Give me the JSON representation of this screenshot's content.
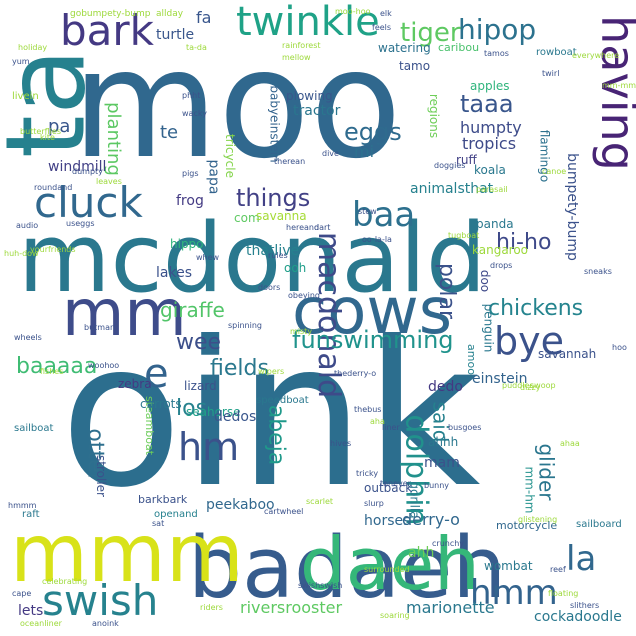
{
  "words": [
    {
      "text": "oink",
      "color": "#2c6e8e",
      "size": 200,
      "rot": 0
    },
    {
      "text": "moo",
      "color": "#30688e",
      "size": 150,
      "rot": 0
    },
    {
      "text": "ta",
      "color": "#26818e",
      "size": 110,
      "rot": -90
    },
    {
      "text": "mcdonald",
      "color": "#2a788e",
      "size": 95,
      "rot": 0
    },
    {
      "text": "cows",
      "color": "#31688e",
      "size": 64,
      "rot": 0
    },
    {
      "text": "mm",
      "color": "#3e4c8a",
      "size": 64,
      "rot": 0
    },
    {
      "text": "badaeh",
      "color": "#365c8d",
      "size": 85,
      "rot": 0
    },
    {
      "text": "mmm",
      "color": "#d8e219",
      "size": 80,
      "rot": 0
    },
    {
      "text": "daeh",
      "color": "#35b779",
      "size": 72,
      "rot": 0
    },
    {
      "text": "bark",
      "color": "#443983",
      "size": 42,
      "rot": 0
    },
    {
      "text": "twinkle",
      "color": "#1fa287",
      "size": 40,
      "rot": 0
    },
    {
      "text": "cluck",
      "color": "#31688e",
      "size": 42,
      "rot": 0
    },
    {
      "text": "swish",
      "color": "#26828e",
      "size": 42,
      "rot": 0
    },
    {
      "text": "having",
      "color": "#482475",
      "size": 46,
      "rot": 90
    },
    {
      "text": "bye",
      "color": "#3b528b",
      "size": 38,
      "rot": 0
    },
    {
      "text": "hm",
      "color": "#3b528b",
      "size": 38,
      "rot": 0
    },
    {
      "text": "e",
      "color": "#33638d",
      "size": 40,
      "rot": 0
    },
    {
      "text": "baa",
      "color": "#2d708e",
      "size": 34,
      "rot": 0
    },
    {
      "text": "la",
      "color": "#31688e",
      "size": 34,
      "rot": 0
    },
    {
      "text": "hmm",
      "color": "#33638d",
      "size": 34,
      "rot": 0
    },
    {
      "text": "macdonald",
      "color": "#3e4a89",
      "size": 30,
      "rot": 90
    },
    {
      "text": "dolphin",
      "color": "#21918c",
      "size": 30,
      "rot": 90
    },
    {
      "text": "hipop",
      "color": "#2c728e",
      "size": 28,
      "rot": 0
    },
    {
      "text": "tiger",
      "color": "#5ec962",
      "size": 26,
      "rot": 0
    },
    {
      "text": "things",
      "color": "#424186",
      "size": 24,
      "rot": 0
    },
    {
      "text": "eggs",
      "color": "#2f6b8e",
      "size": 24,
      "rot": 0
    },
    {
      "text": "taaa",
      "color": "#39568c",
      "size": 24,
      "rot": 0
    },
    {
      "text": "funswimming",
      "color": "#20938c",
      "size": 24,
      "rot": 0
    },
    {
      "text": "chickens",
      "color": "#25848e",
      "size": 22,
      "rot": 0
    },
    {
      "text": "baaaaa",
      "color": "#3fbc73",
      "size": 22,
      "rot": 0
    },
    {
      "text": "giraffe",
      "color": "#52c569",
      "size": 20,
      "rot": 0
    },
    {
      "text": "hi-ho",
      "color": "#3e4989",
      "size": 22,
      "rot": 0
    },
    {
      "text": "polar",
      "color": "#3b528b",
      "size": 22,
      "rot": 90
    },
    {
      "text": "abeja",
      "color": "#1f998a",
      "size": 22,
      "rot": 90
    },
    {
      "text": "los",
      "color": "#26828e",
      "size": 22,
      "rot": 0
    },
    {
      "text": "fields",
      "color": "#2a788e",
      "size": 22,
      "rot": 0
    },
    {
      "text": "otter",
      "color": "#2e6f8e",
      "size": 22,
      "rot": 90
    },
    {
      "text": "wee",
      "color": "#3c4f8a",
      "size": 22,
      "rot": 0
    },
    {
      "text": "glider",
      "color": "#2a768e",
      "size": 20,
      "rot": 90
    },
    {
      "text": "said",
      "color": "#26818e",
      "size": 20,
      "rot": 90
    },
    {
      "text": "planting",
      "color": "#5cc863",
      "size": 18,
      "rot": 90
    },
    {
      "text": "humpty",
      "color": "#3e4c8a",
      "size": 16,
      "rot": 0
    },
    {
      "text": "tropics",
      "color": "#3e4a89",
      "size": 16,
      "rot": 0
    },
    {
      "text": "pa",
      "color": "#39568c",
      "size": 18,
      "rot": 0
    },
    {
      "text": "te",
      "color": "#33638d",
      "size": 18,
      "rot": 0
    },
    {
      "text": "mi",
      "color": "#2d708e",
      "size": 16,
      "rot": 0
    },
    {
      "text": "fa",
      "color": "#39568c",
      "size": 16,
      "rot": 0
    },
    {
      "text": "turtle",
      "color": "#39568c",
      "size": 14,
      "rot": 0
    },
    {
      "text": "tamo",
      "color": "#3b528b",
      "size": 12,
      "rot": 0
    },
    {
      "text": "watering",
      "color": "#2c728e",
      "size": 12,
      "rot": 0
    },
    {
      "text": "caribou",
      "color": "#4ac16d",
      "size": 11,
      "rot": 0
    },
    {
      "text": "plowing",
      "color": "#39568c",
      "size": 12,
      "rot": 0
    },
    {
      "text": "tractor",
      "color": "#2a768e",
      "size": 14,
      "rot": 0
    },
    {
      "text": "apples",
      "color": "#2fb47c",
      "size": 12,
      "rot": 0
    },
    {
      "text": "regions",
      "color": "#6ece58",
      "size": 12,
      "rot": 90
    },
    {
      "text": "flamingo",
      "color": "#2c718e",
      "size": 12,
      "rot": 90
    },
    {
      "text": "bumpety-bump",
      "color": "#3b528b",
      "size": 14,
      "rot": 90
    },
    {
      "text": "babyeinstein",
      "color": "#33638d",
      "size": 12,
      "rot": 90
    },
    {
      "text": "tricycle",
      "color": "#84d44b",
      "size": 12,
      "rot": 90
    },
    {
      "text": "papa",
      "color": "#33638d",
      "size": 14,
      "rot": 90
    },
    {
      "text": "com",
      "color": "#5ec962",
      "size": 12,
      "rot": 0
    },
    {
      "text": "windmill",
      "color": "#424086",
      "size": 14,
      "rot": 0
    },
    {
      "text": "frog",
      "color": "#443b84",
      "size": 14,
      "rot": 0
    },
    {
      "text": "ruff",
      "color": "#424186",
      "size": 12,
      "rot": 0
    },
    {
      "text": "koala",
      "color": "#2a788e",
      "size": 12,
      "rot": 0
    },
    {
      "text": "animalsthat",
      "color": "#26818e",
      "size": 14,
      "rot": 0
    },
    {
      "text": "savanna",
      "color": "#a5db36",
      "size": 12,
      "rot": 0
    },
    {
      "text": "hippo",
      "color": "#2fb47c",
      "size": 12,
      "rot": 0
    },
    {
      "text": "ooh",
      "color": "#1f9e89",
      "size": 12,
      "rot": 0
    },
    {
      "text": "lakes",
      "color": "#3b528b",
      "size": 14,
      "rot": 0
    },
    {
      "text": "thatlive",
      "color": "#26818e",
      "size": 14,
      "rot": 0
    },
    {
      "text": "panda",
      "color": "#2a788e",
      "size": 12,
      "rot": 0
    },
    {
      "text": "kangaroo",
      "color": "#9dd93b",
      "size": 12,
      "rot": 0
    },
    {
      "text": "doo",
      "color": "#3e4989",
      "size": 12,
      "rot": 90
    },
    {
      "text": "zebra",
      "color": "#443983",
      "size": 12,
      "rot": 0
    },
    {
      "text": "steamboat",
      "color": "#6ccd5a",
      "size": 11,
      "rot": 90
    },
    {
      "text": "carrots",
      "color": "#2a788e",
      "size": 12,
      "rot": 0
    },
    {
      "text": "lizard",
      "color": "#3b528b",
      "size": 12,
      "rot": 0
    },
    {
      "text": "seahorse",
      "color": "#1fa088",
      "size": 12,
      "rot": 0
    },
    {
      "text": "dedos",
      "color": "#39568c",
      "size": 14,
      "rot": 0
    },
    {
      "text": "dedo",
      "color": "#443983",
      "size": 14,
      "rot": 0
    },
    {
      "text": "einstein",
      "color": "#33638d",
      "size": 14,
      "rot": 0
    },
    {
      "text": "ahhh",
      "color": "#2a788e",
      "size": 12,
      "rot": 0
    },
    {
      "text": "mam",
      "color": "#3b528b",
      "size": 14,
      "rot": 0
    },
    {
      "text": "mm-hm",
      "color": "#21918c",
      "size": 12,
      "rot": 90
    },
    {
      "text": "penguin",
      "color": "#2a788e",
      "size": 12,
      "rot": 90
    },
    {
      "text": "savannah",
      "color": "#3b528b",
      "size": 12,
      "rot": 0
    },
    {
      "text": "gorilla",
      "color": "#2a788e",
      "size": 12,
      "rot": 90
    },
    {
      "text": "stroller",
      "color": "#3b528b",
      "size": 12,
      "rot": 90
    },
    {
      "text": "amoo",
      "color": "#26818e",
      "size": 11,
      "rot": 90
    },
    {
      "text": "peekaboo",
      "color": "#31688e",
      "size": 14,
      "rot": 0
    },
    {
      "text": "outback",
      "color": "#3b528b",
      "size": 12,
      "rot": 0
    },
    {
      "text": "derry-o",
      "color": "#31688e",
      "size": 16,
      "rot": 0
    },
    {
      "text": "ahh",
      "color": "#6ece58",
      "size": 14,
      "rot": 0
    },
    {
      "text": "horses",
      "color": "#31688e",
      "size": 14,
      "rot": 0
    },
    {
      "text": "wombat",
      "color": "#2a788e",
      "size": 12,
      "rot": 0
    },
    {
      "text": "cockadoodle",
      "color": "#2a788e",
      "size": 14,
      "rot": 0
    },
    {
      "text": "marionette",
      "color": "#2a788e",
      "size": 16,
      "rot": 0
    },
    {
      "text": "riversrooster",
      "color": "#5ec962",
      "size": 16,
      "rot": 0
    },
    {
      "text": "lets",
      "color": "#443983",
      "size": 14,
      "rot": 0
    },
    {
      "text": "motorcycle",
      "color": "#31688e",
      "size": 11,
      "rot": 0
    },
    {
      "text": "barkbark",
      "color": "#3b528b",
      "size": 11,
      "rot": 0
    },
    {
      "text": "openand",
      "color": "#26818e",
      "size": 10,
      "rot": 0
    },
    {
      "text": "speedboat",
      "color": "#2a788e",
      "size": 10,
      "rot": 0
    },
    {
      "text": "sailboard",
      "color": "#2a788e",
      "size": 10,
      "rot": 0
    },
    {
      "text": "sailboat",
      "color": "#2a788e",
      "size": 10,
      "rot": 0
    },
    {
      "text": "raft",
      "color": "#2a788e",
      "size": 10,
      "rot": 0
    },
    {
      "text": "rowboat",
      "color": "#2a788e",
      "size": 10,
      "rot": 0
    },
    {
      "text": "gobumpety-bump",
      "color": "#9dd93b",
      "size": 9,
      "rot": 0
    },
    {
      "text": "allday",
      "color": "#9dd93b",
      "size": 9,
      "rot": 0
    },
    {
      "text": "moo-hoo",
      "color": "#9dd93b",
      "size": 8,
      "rot": 0
    },
    {
      "text": "ta-da",
      "color": "#9dd93b",
      "size": 8,
      "rot": 0
    },
    {
      "text": "rainforest",
      "color": "#9dd93b",
      "size": 8,
      "rot": 0
    },
    {
      "text": "mellow",
      "color": "#9dd93b",
      "size": 8,
      "rot": 0
    },
    {
      "text": "everywhere",
      "color": "#9dd93b",
      "size": 8,
      "rot": 0
    },
    {
      "text": "tamos",
      "color": "#3b528b",
      "size": 8,
      "rot": 0
    },
    {
      "text": "twirl",
      "color": "#3b528b",
      "size": 8,
      "rot": 0
    },
    {
      "text": "yum",
      "color": "#3b528b",
      "size": 8,
      "rot": 0
    },
    {
      "text": "livein",
      "color": "#9dd93b",
      "size": 10,
      "rot": 0
    },
    {
      "text": "butterflies",
      "color": "#9dd93b",
      "size": 8,
      "rot": 0
    },
    {
      "text": "kite",
      "color": "#9dd93b",
      "size": 8,
      "rot": 0
    },
    {
      "text": "phht",
      "color": "#3b528b",
      "size": 8,
      "rot": 0
    },
    {
      "text": "wacky",
      "color": "#3b528b",
      "size": 8,
      "rot": 0
    },
    {
      "text": "dumpty",
      "color": "#3b528b",
      "size": 8,
      "rot": 0
    },
    {
      "text": "roundand",
      "color": "#3b528b",
      "size": 8,
      "rot": 0
    },
    {
      "text": "useggs",
      "color": "#3b528b",
      "size": 8,
      "rot": 0
    },
    {
      "text": "audio",
      "color": "#3b528b",
      "size": 8,
      "rot": 0
    },
    {
      "text": "leaves",
      "color": "#9dd93b",
      "size": 8,
      "rot": 0
    },
    {
      "text": "pigs",
      "color": "#3b528b",
      "size": 8,
      "rot": 0
    },
    {
      "text": "therean",
      "color": "#3b528b",
      "size": 8,
      "rot": 0
    },
    {
      "text": "dive",
      "color": "#3b528b",
      "size": 8,
      "rot": 0
    },
    {
      "text": "doggies",
      "color": "#3b528b",
      "size": 8,
      "rot": 0
    },
    {
      "text": "parasail",
      "color": "#9dd93b",
      "size": 8,
      "rot": 0
    },
    {
      "text": "canoe",
      "color": "#9dd93b",
      "size": 8,
      "rot": 0
    },
    {
      "text": "stew",
      "color": "#3b528b",
      "size": 8,
      "rot": 0
    },
    {
      "text": "hereand",
      "color": "#3b528b",
      "size": 8,
      "rot": 0
    },
    {
      "text": "dart",
      "color": "#3b528b",
      "size": 8,
      "rot": 0
    },
    {
      "text": "tugboat",
      "color": "#9dd93b",
      "size": 8,
      "rot": 0
    },
    {
      "text": "drops",
      "color": "#3b528b",
      "size": 8,
      "rot": 0
    },
    {
      "text": "yourfriends",
      "color": "#9dd93b",
      "size": 8,
      "rot": 0
    },
    {
      "text": "whew",
      "color": "#3b528b",
      "size": 8,
      "rot": 0
    },
    {
      "text": "oo-la-la",
      "color": "#3b528b",
      "size": 8,
      "rot": 0
    },
    {
      "text": "rules",
      "color": "#3b528b",
      "size": 8,
      "rot": 0
    },
    {
      "text": "doors",
      "color": "#3b528b",
      "size": 8,
      "rot": 0
    },
    {
      "text": "obeying",
      "color": "#3b528b",
      "size": 8,
      "rot": 0
    },
    {
      "text": "spinning",
      "color": "#3b528b",
      "size": 8,
      "rot": 0
    },
    {
      "text": "butman",
      "color": "#3b528b",
      "size": 8,
      "rot": 0
    },
    {
      "text": "woohoo",
      "color": "#3b528b",
      "size": 8,
      "rot": 0
    },
    {
      "text": "fishes",
      "color": "#9dd93b",
      "size": 8,
      "rot": 0
    },
    {
      "text": "wipers",
      "color": "#9dd93b",
      "size": 8,
      "rot": 0
    },
    {
      "text": "thederry-o",
      "color": "#3b528b",
      "size": 8,
      "rot": 0
    },
    {
      "text": "puddles",
      "color": "#9dd93b",
      "size": 8,
      "rot": 0
    },
    {
      "text": "swoop",
      "color": "#9dd93b",
      "size": 8,
      "rot": 0
    },
    {
      "text": "thebus",
      "color": "#3b528b",
      "size": 8,
      "rot": 0
    },
    {
      "text": "aha",
      "color": "#9dd93b",
      "size": 8,
      "rot": 0
    },
    {
      "text": "liner",
      "color": "#3b528b",
      "size": 8,
      "rot": 0
    },
    {
      "text": "busgoes",
      "color": "#3b528b",
      "size": 8,
      "rot": 0
    },
    {
      "text": "ahaa",
      "color": "#9dd93b",
      "size": 8,
      "rot": 0
    },
    {
      "text": "hives",
      "color": "#3b528b",
      "size": 8,
      "rot": 0
    },
    {
      "text": "tricky",
      "color": "#3b528b",
      "size": 8,
      "rot": 0
    },
    {
      "text": "tonever",
      "color": "#3b528b",
      "size": 8,
      "rot": 0
    },
    {
      "text": "bunny",
      "color": "#3b528b",
      "size": 8,
      "rot": 0
    },
    {
      "text": "slurp",
      "color": "#3b528b",
      "size": 8,
      "rot": 0
    },
    {
      "text": "glistening",
      "color": "#9dd93b",
      "size": 8,
      "rot": 0
    },
    {
      "text": "cartwheel",
      "color": "#3b528b",
      "size": 8,
      "rot": 0
    },
    {
      "text": "scarlet",
      "color": "#9dd93b",
      "size": 8,
      "rot": 0
    },
    {
      "text": "sat",
      "color": "#3b528b",
      "size": 8,
      "rot": 0
    },
    {
      "text": "hmmm",
      "color": "#3b528b",
      "size": 8,
      "rot": 0
    },
    {
      "text": "crunchy",
      "color": "#3b528b",
      "size": 8,
      "rot": 0
    },
    {
      "text": "reef",
      "color": "#3b528b",
      "size": 8,
      "rot": 0
    },
    {
      "text": "surrounded",
      "color": "#9dd93b",
      "size": 8,
      "rot": 0
    },
    {
      "text": "floating",
      "color": "#9dd93b",
      "size": 8,
      "rot": 0
    },
    {
      "text": "slithers",
      "color": "#3b528b",
      "size": 8,
      "rot": 0
    },
    {
      "text": "celebrating",
      "color": "#9dd93b",
      "size": 8,
      "rot": 0
    },
    {
      "text": "cape",
      "color": "#3b528b",
      "size": 8,
      "rot": 0
    },
    {
      "text": "riders",
      "color": "#9dd93b",
      "size": 8,
      "rot": 0
    },
    {
      "text": "soaring",
      "color": "#9dd93b",
      "size": 8,
      "rot": 0
    },
    {
      "text": "swishswish",
      "color": "#3b528b",
      "size": 8,
      "rot": 0
    },
    {
      "text": "oceanliner",
      "color": "#9dd93b",
      "size": 8,
      "rot": 0
    },
    {
      "text": "anoink",
      "color": "#3b528b",
      "size": 8,
      "rot": 0
    },
    {
      "text": "huh-dow",
      "color": "#9dd93b",
      "size": 8,
      "rot": 0
    },
    {
      "text": "wheels",
      "color": "#3b528b",
      "size": 8,
      "rot": 0
    },
    {
      "text": "hoo",
      "color": "#3b528b",
      "size": 8,
      "rot": 0
    },
    {
      "text": "dizzy",
      "color": "#9dd93b",
      "size": 8,
      "rot": 0
    },
    {
      "text": "sneaks",
      "color": "#3b528b",
      "size": 8,
      "rot": 0
    },
    {
      "text": "feels",
      "color": "#3b528b",
      "size": 8,
      "rot": 0
    },
    {
      "text": "elk",
      "color": "#3b528b",
      "size": 8,
      "rot": 0
    },
    {
      "text": "mm-mm",
      "color": "#9dd93b",
      "size": 8,
      "rot": 0
    },
    {
      "text": "holiday",
      "color": "#9dd93b",
      "size": 8,
      "rot": 0
    },
    {
      "text": "misty",
      "color": "#9dd93b",
      "size": 8,
      "rot": 0
    }
  ]
}
